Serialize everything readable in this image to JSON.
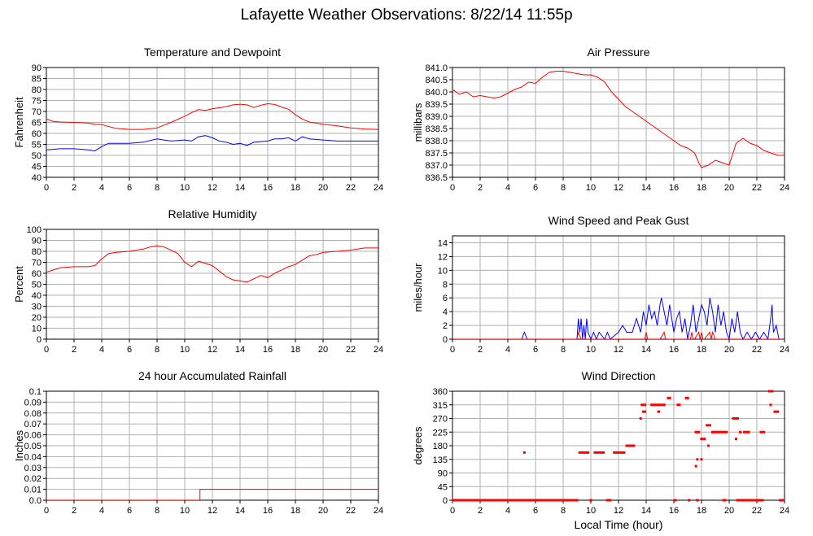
{
  "page_title": "Lafayette Weather Observations: 8/22/14 11:55p",
  "x_axis_label": "Local Time (hour)",
  "colors": {
    "red": "#ff0000",
    "blue": "#0000ff",
    "grid": "#b0b0b0"
  },
  "chart_data": [
    {
      "type": "line",
      "title": "Temperature and Dewpoint",
      "ylabel": "Fahrenheit",
      "xlim": [
        0,
        24
      ],
      "ylim": [
        40,
        90
      ],
      "x_ticks": [
        "0",
        "2",
        "4",
        "6",
        "8",
        "10",
        "12",
        "14",
        "16",
        "18",
        "20",
        "22",
        "24"
      ],
      "y_ticks": [
        "40",
        "45",
        "50",
        "55",
        "60",
        "65",
        "70",
        "75",
        "80",
        "85",
        "90"
      ],
      "grid": true,
      "series": [
        {
          "color": "#ff0000",
          "x": [
            0,
            0.5,
            1,
            2,
            3,
            3.5,
            4,
            5,
            6,
            7,
            8,
            9,
            10,
            10.5,
            11,
            11.5,
            12,
            13,
            13.5,
            14,
            14.5,
            15,
            15.5,
            16,
            16.5,
            17,
            17.5,
            18,
            18.5,
            19,
            20,
            21,
            22,
            23,
            24
          ],
          "y": [
            66.5,
            65.5,
            65.2,
            65,
            64.7,
            64.2,
            64,
            62.3,
            61.8,
            61.8,
            62.5,
            65,
            67.8,
            69.5,
            70.8,
            70.5,
            71.2,
            72.2,
            73,
            73.3,
            73,
            71.8,
            72.8,
            73.5,
            73.2,
            72,
            71,
            68.5,
            66.5,
            65.2,
            64.2,
            63.5,
            62.5,
            62,
            61.8
          ]
        },
        {
          "color": "#0000ff",
          "x": [
            0,
            1,
            2,
            3,
            3.5,
            4,
            4.5,
            5,
            6,
            7,
            8,
            8.5,
            9,
            10,
            10.5,
            11,
            11.5,
            12,
            12.5,
            13,
            13.5,
            14,
            14.5,
            15,
            16,
            16.5,
            17,
            17.5,
            18,
            18.5,
            19,
            20,
            21,
            22,
            23,
            24
          ],
          "y": [
            52.5,
            53,
            53,
            52.5,
            52,
            54,
            55.5,
            55.5,
            55.5,
            56,
            57.5,
            57,
            56.5,
            57,
            56.5,
            58.5,
            59,
            58,
            56.5,
            56,
            55,
            55.5,
            54.5,
            56,
            56.5,
            57.5,
            57.5,
            58,
            56.5,
            58.5,
            57.5,
            57,
            56.5,
            56.5,
            56.5,
            56.5
          ]
        }
      ]
    },
    {
      "type": "line",
      "title": "Air Pressure",
      "ylabel": "millibars",
      "xlim": [
        0,
        24
      ],
      "ylim": [
        836.5,
        841.0
      ],
      "x_ticks": [
        "0",
        "2",
        "4",
        "6",
        "8",
        "10",
        "12",
        "14",
        "16",
        "18",
        "20",
        "22",
        "24"
      ],
      "y_ticks": [
        "836.5",
        "837.0",
        "837.5",
        "838.0",
        "838.5",
        "839.0",
        "839.5",
        "840.0",
        "840.5",
        "841.0"
      ],
      "grid": true,
      "series": [
        {
          "color": "#ff0000",
          "x": [
            0,
            0.5,
            1,
            1.5,
            2,
            2.5,
            3,
            3.5,
            4,
            4.5,
            5,
            5.5,
            6,
            6.5,
            7,
            7.5,
            8,
            8.5,
            9,
            9.5,
            10,
            10.5,
            11,
            11.5,
            12,
            12.5,
            13,
            13.5,
            14,
            14.5,
            15,
            15.5,
            16,
            16.5,
            17,
            17.5,
            17.8,
            18,
            18.5,
            19,
            19.5,
            20,
            20.5,
            21,
            21.5,
            22,
            22.5,
            23,
            23.5,
            24
          ],
          "y": [
            840.1,
            839.9,
            840.0,
            839.8,
            839.85,
            839.8,
            839.75,
            839.8,
            839.95,
            840.1,
            840.2,
            840.4,
            840.35,
            840.6,
            840.8,
            840.85,
            840.85,
            840.8,
            840.75,
            840.7,
            840.7,
            840.6,
            840.4,
            840.0,
            839.7,
            839.4,
            839.2,
            839.0,
            838.8,
            838.6,
            838.4,
            838.2,
            838.0,
            837.8,
            837.7,
            837.5,
            837.1,
            836.9,
            837.0,
            837.2,
            837.1,
            837.0,
            837.9,
            838.1,
            837.9,
            837.8,
            837.6,
            837.5,
            837.4,
            837.4
          ]
        }
      ]
    },
    {
      "type": "line",
      "title": "Relative Humidity",
      "ylabel": "Percent",
      "xlim": [
        0,
        24
      ],
      "ylim": [
        0,
        100
      ],
      "x_ticks": [
        "0",
        "2",
        "4",
        "6",
        "8",
        "10",
        "12",
        "14",
        "16",
        "18",
        "20",
        "22",
        "24"
      ],
      "y_ticks": [
        "0",
        "10",
        "20",
        "30",
        "40",
        "50",
        "60",
        "70",
        "80",
        "90",
        "100"
      ],
      "grid": true,
      "series": [
        {
          "color": "#ff0000",
          "x": [
            0,
            0.5,
            1,
            2,
            3,
            3.5,
            4,
            4.5,
            5,
            6,
            7,
            7.5,
            8,
            8.5,
            9,
            9.5,
            10,
            10.5,
            11,
            11.5,
            12,
            12.5,
            13,
            13.5,
            14,
            14.5,
            15,
            15.5,
            16,
            16.5,
            17,
            17.5,
            18,
            18.5,
            19,
            19.5,
            20,
            21,
            22,
            23,
            24
          ],
          "y": [
            61,
            63,
            65,
            66,
            66,
            67,
            73,
            78,
            79,
            80,
            82,
            84,
            85,
            84,
            81,
            78,
            70,
            66,
            71,
            69,
            67,
            62,
            57,
            54,
            53,
            52,
            55,
            58,
            56,
            60,
            63,
            66,
            68,
            72,
            76,
            77,
            79,
            80,
            81,
            83,
            83
          ]
        }
      ]
    },
    {
      "type": "line",
      "title": "Wind Speed and Peak Gust",
      "ylabel": "miles/hour",
      "xlim": [
        0,
        24
      ],
      "ylim": [
        0,
        15
      ],
      "x_ticks": [
        "0",
        "2",
        "4",
        "6",
        "8",
        "10",
        "12",
        "14",
        "16",
        "18",
        "20",
        "22",
        "24"
      ],
      "y_ticks": [
        "0",
        "2",
        "4",
        "6",
        "8",
        "10",
        "12",
        "14"
      ],
      "grid": true,
      "series": [
        {
          "color": "#0000ff",
          "x": [
            0,
            5,
            5.2,
            5.4,
            9,
            9.1,
            9.2,
            9.3,
            9.4,
            9.5,
            9.6,
            9.7,
            9.8,
            10,
            10.2,
            10.4,
            10.6,
            11,
            11.2,
            11.4,
            12,
            12.3,
            12.6,
            13,
            13.3,
            13.6,
            13.8,
            14,
            14.2,
            14.4,
            14.6,
            14.8,
            15,
            15.1,
            15.3,
            15.5,
            15.7,
            16,
            16.2,
            16.4,
            16.6,
            16.8,
            17,
            17.2,
            17.4,
            17.6,
            17.8,
            18,
            18.2,
            18.4,
            18.6,
            18.8,
            19,
            19.2,
            19.4,
            19.6,
            19.8,
            20,
            20.2,
            20.4,
            20.6,
            20.8,
            21,
            21.3,
            21.6,
            21.9,
            22.2,
            22.5,
            22.8,
            23,
            23.1,
            23.2,
            23.4,
            23.6,
            23.8
          ],
          "y": [
            0,
            0,
            1,
            0,
            0,
            3,
            1,
            3,
            0,
            2,
            0,
            3,
            1,
            0,
            1,
            0,
            1,
            0,
            1,
            0,
            1,
            2,
            1,
            1,
            3,
            1,
            4,
            2,
            5,
            3,
            4,
            2,
            5,
            6,
            4,
            2,
            5,
            1,
            3,
            4,
            1,
            3,
            0,
            2,
            5,
            1,
            3,
            5,
            4,
            2,
            6,
            4,
            1,
            5,
            2,
            4,
            1,
            0,
            3,
            1,
            4,
            1,
            0,
            1,
            0,
            1,
            0,
            1,
            0,
            3,
            5,
            1,
            2,
            0,
            0
          ]
        },
        {
          "color": "#ff0000",
          "x": [
            0,
            9,
            9.1,
            9.3,
            9.5,
            10,
            12,
            13.9,
            14,
            14.1,
            14.2,
            15,
            15.3,
            15.4,
            15.5,
            17.2,
            17.3,
            17.4,
            17.5,
            17.8,
            17.9,
            18,
            18.1,
            18.2,
            18.6,
            18.7,
            18.8,
            19,
            23.8
          ],
          "y": [
            0,
            0,
            1,
            0,
            0,
            0,
            0,
            0,
            1,
            0,
            0,
            0,
            1,
            0,
            0,
            0,
            1,
            0,
            0,
            1,
            0,
            1,
            0,
            0,
            1,
            0,
            1,
            0,
            0
          ]
        }
      ]
    },
    {
      "type": "line",
      "title": "24 hour Accumulated Rainfall",
      "ylabel": "Inches",
      "xlim": [
        0,
        24
      ],
      "ylim": [
        0,
        0.1
      ],
      "x_ticks": [
        "0",
        "2",
        "4",
        "6",
        "8",
        "10",
        "12",
        "14",
        "16",
        "18",
        "20",
        "22",
        "24"
      ],
      "y_ticks": [
        "0.0",
        "0.01",
        "0.02",
        "0.03",
        "0.04",
        "0.05",
        "0.06",
        "0.07",
        "0.08",
        "0.09",
        "0.1"
      ],
      "grid": true,
      "series": [
        {
          "color": "#ff0000",
          "x": [
            0,
            11.1,
            11.1,
            24
          ],
          "y": [
            0,
            0,
            0.01,
            0.01
          ]
        }
      ]
    },
    {
      "type": "scatter",
      "title": "Wind Direction",
      "ylabel": "degrees",
      "xlabel": "Local Time (hour)",
      "xlim": [
        0,
        24
      ],
      "ylim": [
        0,
        360
      ],
      "x_ticks": [
        "0",
        "2",
        "4",
        "6",
        "8",
        "10",
        "12",
        "14",
        "16",
        "18",
        "20",
        "22",
        "24"
      ],
      "y_ticks": [
        "0",
        "45",
        "90",
        "135",
        "180",
        "225",
        "270",
        "315",
        "360"
      ],
      "grid": true,
      "series": [
        {
          "color": "#ff0000",
          "segments": [
            [
              0,
              9.1,
              0
            ],
            [
              9.9,
              10.1,
              0
            ],
            [
              11.1,
              11.5,
              0
            ],
            [
              16.0,
              16.2,
              0
            ],
            [
              17.0,
              17.2,
              0
            ],
            [
              17.6,
              17.8,
              0
            ],
            [
              19.5,
              19.8,
              0
            ],
            [
              20.5,
              22.5,
              0
            ],
            [
              23.6,
              24,
              0
            ],
            [
              9.1,
              9.9,
              157.5
            ],
            [
              10.2,
              11.0,
              157.5
            ],
            [
              11.6,
              12.5,
              157.5
            ],
            [
              12.5,
              13.2,
              180
            ],
            [
              13.6,
              14.0,
              315
            ],
            [
              14.3,
              15.4,
              315
            ],
            [
              15.5,
              15.8,
              337.5
            ],
            [
              16.2,
              16.5,
              315
            ],
            [
              16.8,
              17.1,
              337.5
            ],
            [
              17.5,
              17.9,
              225
            ],
            [
              18.3,
              18.7,
              247.5
            ],
            [
              18.7,
              19.5,
              225
            ],
            [
              19.5,
              19.9,
              225
            ],
            [
              20.2,
              20.7,
              270
            ],
            [
              21.0,
              21.5,
              225
            ],
            [
              22.2,
              22.6,
              225
            ],
            [
              23.0,
              23.2,
              360
            ],
            [
              23.2,
              23.6,
              292.5
            ],
            [
              13.7,
              14.0,
              292.5
            ],
            [
              14.8,
              15.0,
              292.5
            ],
            [
              17.9,
              18.3,
              202.5
            ],
            [
              20.7,
              20.9,
              225
            ]
          ],
          "points": [
            [
              5.2,
              157.5
            ],
            [
              13.6,
              270
            ],
            [
              17.6,
              112.5
            ],
            [
              17.7,
              135
            ],
            [
              18.0,
              135
            ],
            [
              18.5,
              180
            ],
            [
              20.5,
              202.5
            ],
            [
              22.9,
              360
            ],
            [
              23.0,
              315
            ]
          ]
        }
      ]
    }
  ]
}
